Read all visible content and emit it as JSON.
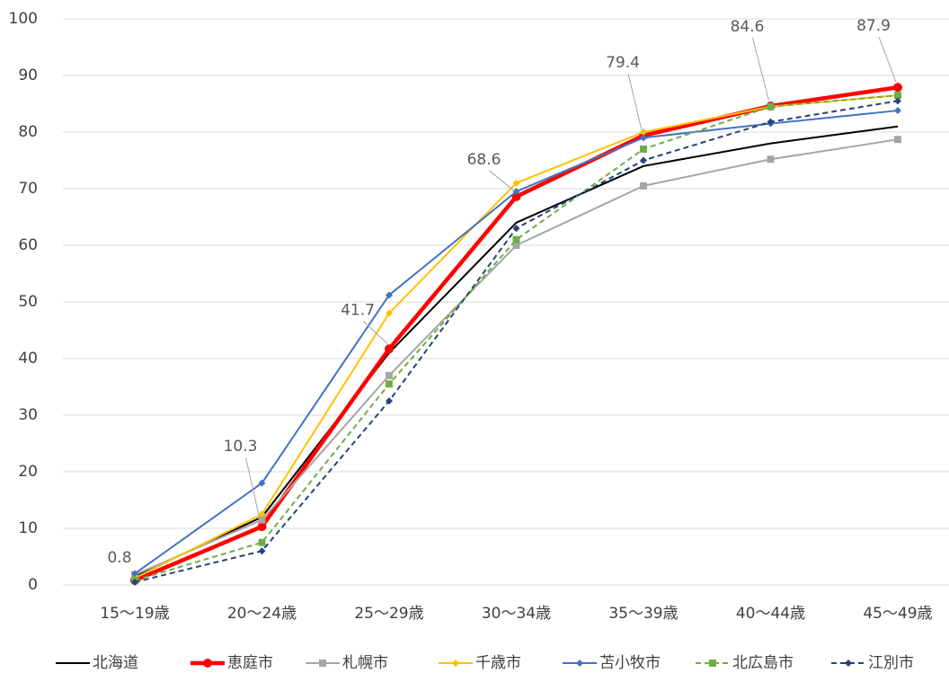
{
  "chart_data": {
    "type": "line",
    "categories": [
      "15〜19歳",
      "20〜24歳",
      "25〜29歳",
      "30〜34歳",
      "35〜39歳",
      "40〜44歳",
      "45〜49歳"
    ],
    "ylim": [
      0,
      100
    ],
    "yticks": [
      0,
      10,
      20,
      30,
      40,
      50,
      60,
      70,
      80,
      90,
      100
    ],
    "grid": true,
    "legend": "bottom",
    "series": [
      {
        "name": "北海道",
        "color": "#000000",
        "marker": null,
        "dashed": false,
        "values": [
          1.5,
          12,
          41,
          64,
          74,
          78,
          81
        ]
      },
      {
        "name": "恵庭市",
        "color": "#ff0000",
        "marker": "circle",
        "dashed": false,
        "data_labels": true,
        "values": [
          0.8,
          10.3,
          41.7,
          68.6,
          79.4,
          84.6,
          87.9
        ]
      },
      {
        "name": "札幌市",
        "color": "#a5a5a5",
        "marker": "square",
        "dashed": false,
        "values": [
          1.8,
          11.5,
          37,
          60,
          70.5,
          75.2,
          78.7
        ]
      },
      {
        "name": "千歳市",
        "color": "#ffc000",
        "marker": "diamond",
        "dashed": false,
        "values": [
          1.2,
          12.5,
          48,
          71,
          80,
          84.5,
          86.5
        ]
      },
      {
        "name": "苫小牧市",
        "color": "#4472c4",
        "marker": "diamond",
        "dashed": false,
        "values": [
          2,
          18,
          51.2,
          69.5,
          79,
          81.5,
          83.8
        ]
      },
      {
        "name": "北広島市",
        "color": "#70ad47",
        "marker": "square",
        "dashed": true,
        "values": [
          0.8,
          7.5,
          35.5,
          61,
          77,
          84.5,
          86.5
        ]
      },
      {
        "name": "江別市",
        "color": "#264478",
        "marker": "diamond",
        "dashed": true,
        "values": [
          0.5,
          6,
          32.5,
          63,
          75,
          81.8,
          85.5
        ]
      }
    ]
  }
}
